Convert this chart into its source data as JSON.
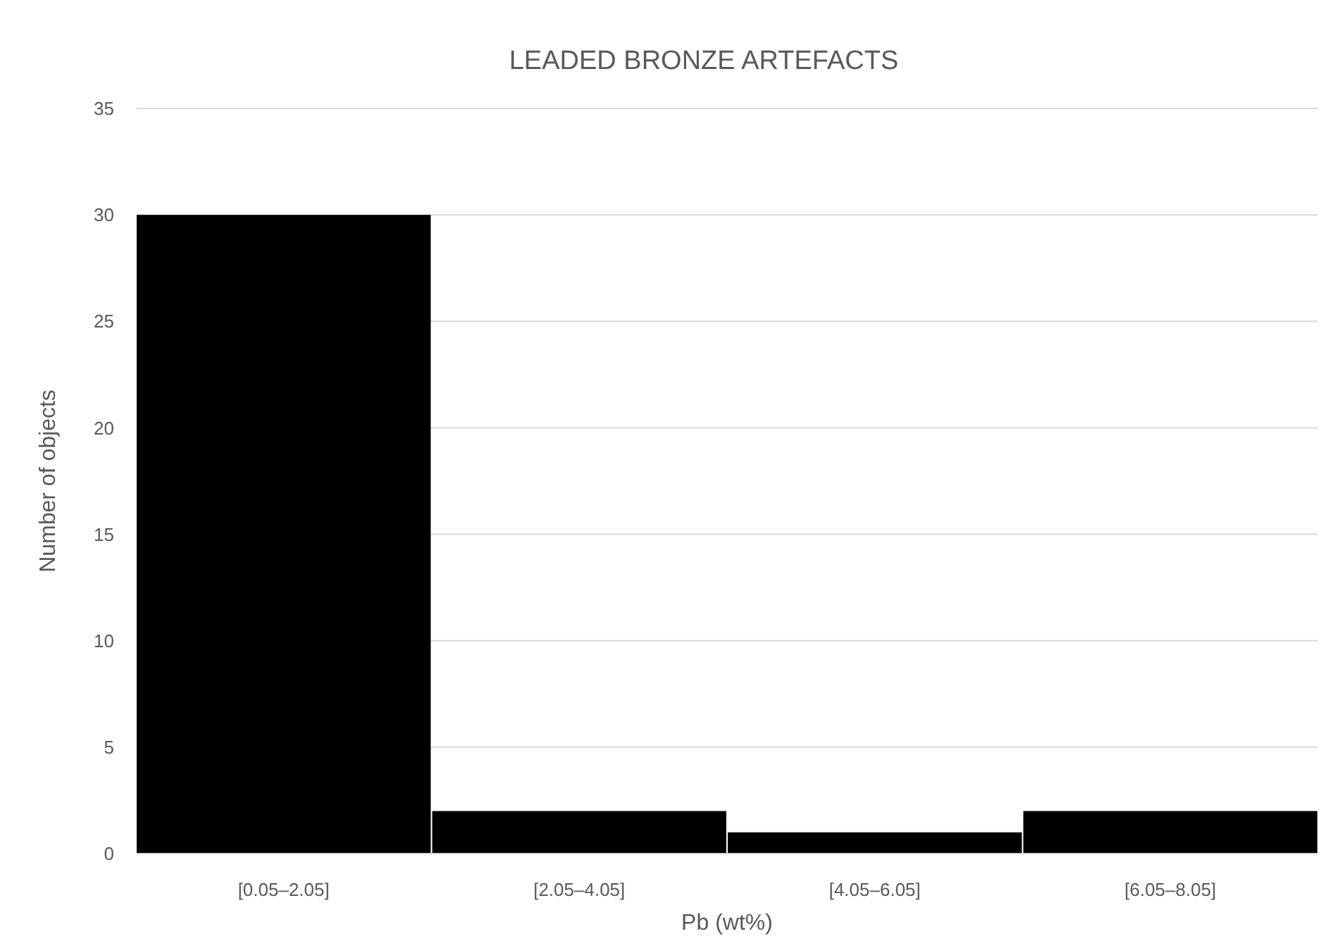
{
  "chart_data": {
    "type": "bar",
    "title": "LEADED BRONZE ARTEFACTS",
    "xlabel": "Pb (wt%)",
    "ylabel": "Number of objects",
    "categories": [
      "[0.05–2.05]",
      "[2.05–4.05]",
      "[4.05–6.05]",
      "[6.05–8.05]"
    ],
    "series": [
      {
        "color": "#000000",
        "values": [
          30,
          2,
          1,
          2
        ]
      }
    ],
    "ylim": [
      0,
      35
    ],
    "yticks": [
      0,
      5,
      10,
      15,
      20,
      25,
      30,
      35
    ],
    "grid": "y"
  }
}
